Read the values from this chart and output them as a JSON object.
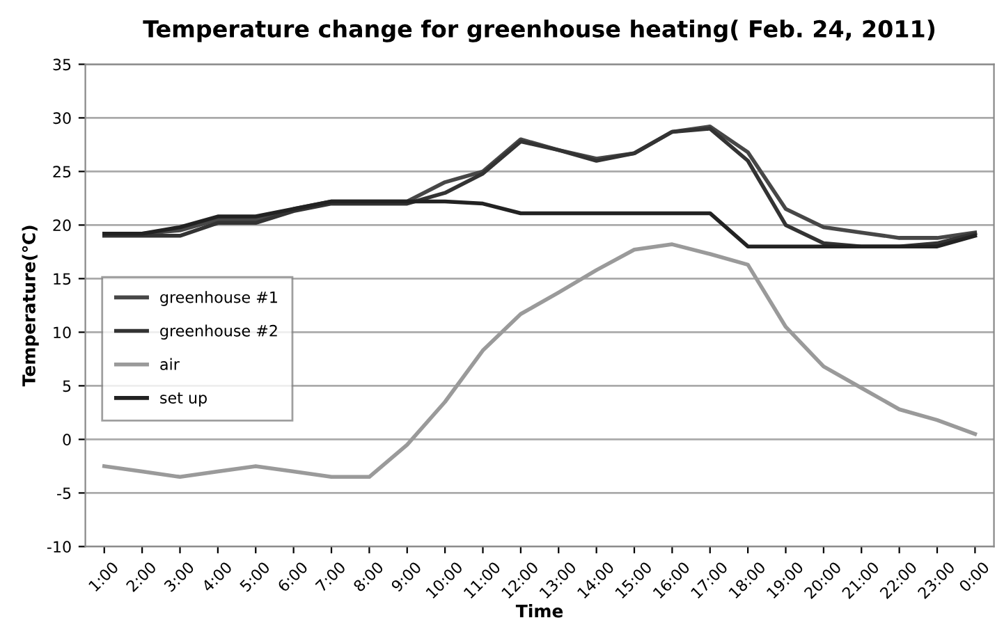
{
  "chart_data": {
    "type": "line",
    "title": "Temperature change for greenhouse heating( Feb. 24, 2011)",
    "xlabel": "Time",
    "ylabel": "Temperature(℃)",
    "categories": [
      "1:00",
      "2:00",
      "3:00",
      "4:00",
      "5:00",
      "6:00",
      "7:00",
      "8:00",
      "9:00",
      "10:00",
      "11:00",
      "12:00",
      "13:00",
      "14:00",
      "15:00",
      "16:00",
      "17:00",
      "18:00",
      "19:00",
      "20:00",
      "21:00",
      "22:00",
      "23:00",
      "0:00"
    ],
    "series": [
      {
        "name": "greenhouse #1",
        "color": "#474747",
        "values": [
          19.2,
          19.2,
          19.5,
          20.5,
          20.5,
          21.5,
          22.2,
          22.2,
          22.2,
          24,
          25,
          28,
          27,
          26.2,
          26.7,
          28.7,
          29.2,
          26.8,
          21.5,
          19.8,
          19.3,
          18.8,
          18.8,
          19.3
        ]
      },
      {
        "name": "greenhouse #2",
        "color": "#333333",
        "values": [
          19,
          19,
          19,
          20.2,
          20.2,
          21.3,
          22,
          22,
          22,
          23,
          24.8,
          27.8,
          27,
          26,
          26.7,
          28.7,
          29,
          26,
          20,
          18.3,
          18,
          18,
          18.3,
          19.2
        ]
      },
      {
        "name": "air",
        "color": "#9a9a9a",
        "values": [
          -2.5,
          -3,
          -3.5,
          -3,
          -2.5,
          -3,
          -3.5,
          -3.5,
          -0.5,
          3.5,
          8.3,
          11.7,
          13.7,
          15.8,
          17.7,
          18.2,
          17.3,
          16.3,
          10.5,
          6.8,
          4.8,
          2.8,
          1.8,
          0.5
        ]
      },
      {
        "name": "set up",
        "color": "#222222",
        "values": [
          19.2,
          19.2,
          19.8,
          20.8,
          20.8,
          21.5,
          22.2,
          22.2,
          22.2,
          22.2,
          22,
          21.1,
          21.1,
          21.1,
          21.1,
          21.1,
          21.1,
          18,
          18,
          18,
          18,
          18,
          18,
          19
        ]
      }
    ],
    "ylim": [
      -10,
      35
    ],
    "yticks": [
      -10,
      -5,
      0,
      5,
      10,
      15,
      20,
      25,
      30,
      35
    ],
    "grid": "y",
    "legend": "center left",
    "marker": "none",
    "line_style": "solid"
  }
}
